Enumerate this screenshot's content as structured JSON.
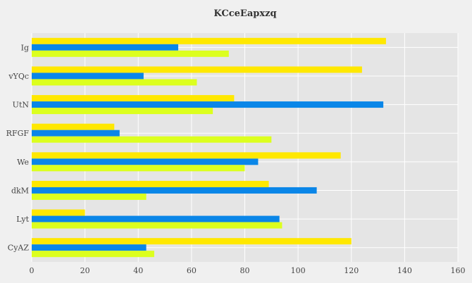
{
  "chart_data": {
    "type": "bar",
    "orientation": "horizontal",
    "title": "KCceEapxzq",
    "xlabel": "",
    "ylabel": "",
    "categories": [
      "Ig",
      "vYQc",
      "UtN",
      "RFGF",
      "We",
      "dkM",
      "Lyt",
      "CyAZ"
    ],
    "series": [
      {
        "color": "#ffe800",
        "values": [
          133,
          124,
          76,
          31,
          116,
          89,
          20,
          120
        ]
      },
      {
        "color": "#0a86e8",
        "values": [
          55,
          42,
          132,
          33,
          85,
          107,
          93,
          43
        ]
      },
      {
        "color": "#dcff1e",
        "values": [
          74,
          62,
          68,
          90,
          80,
          43,
          94,
          46
        ]
      }
    ],
    "xlim": [
      0,
      160
    ],
    "xticks": [
      0,
      20,
      40,
      60,
      80,
      100,
      120,
      140,
      160
    ],
    "grid": true,
    "legend": "none"
  }
}
